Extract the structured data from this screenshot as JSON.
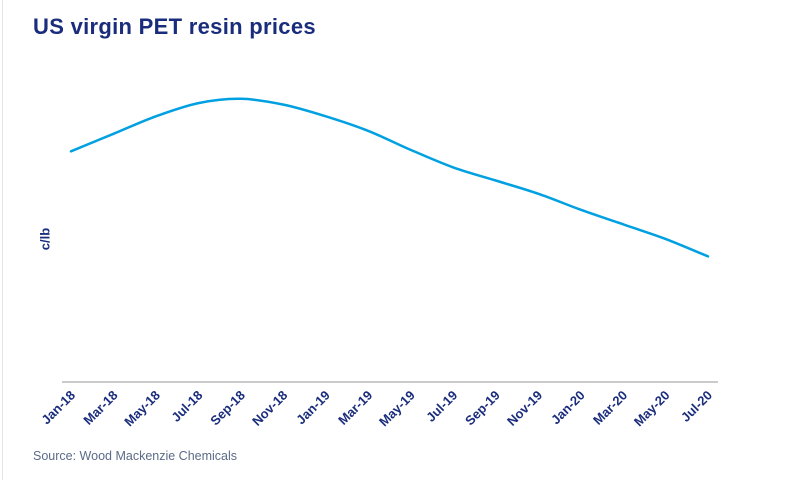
{
  "page": {
    "title": "US virgin PET resin prices",
    "source_note": "Source: Wood Mackenzie Chemicals"
  },
  "colors": {
    "title_navy": "#1a2d7c",
    "line_blue": "#00a0e1",
    "axis_gray": "#cbcbcb",
    "tick_label_navy": "#1a2d7c",
    "source_slate_blue": "#5c6b88",
    "background": "#ffffff"
  },
  "chart_data": {
    "type": "line",
    "title": "US virgin PET resin prices",
    "xlabel": "",
    "ylabel": "c/lb",
    "categories": [
      "Jan-18",
      "Mar-18",
      "May-18",
      "Jul-18",
      "Sep-18",
      "Nov-18",
      "Jan-19",
      "Mar-19",
      "May-19",
      "Jul-19",
      "Sep-19",
      "Nov-19",
      "Jan-20",
      "Mar-20",
      "May-20",
      "Jul-20"
    ],
    "series": [
      {
        "name": "US virgin PET resin price",
        "values": [
          79,
          85,
          91,
          95.5,
          97,
          95,
          91,
          86,
          79.5,
          73.5,
          69,
          64.5,
          59,
          54,
          49,
          43
        ]
      }
    ],
    "value_units": "relative index (no numeric y-axis ticks shown in chart; values estimated as % of plot height)",
    "ylim": [
      0,
      100
    ],
    "grid": "off",
    "legend": "none",
    "x_tick_rotation_deg": -45,
    "y_axis_numeric_ticks": "none"
  }
}
